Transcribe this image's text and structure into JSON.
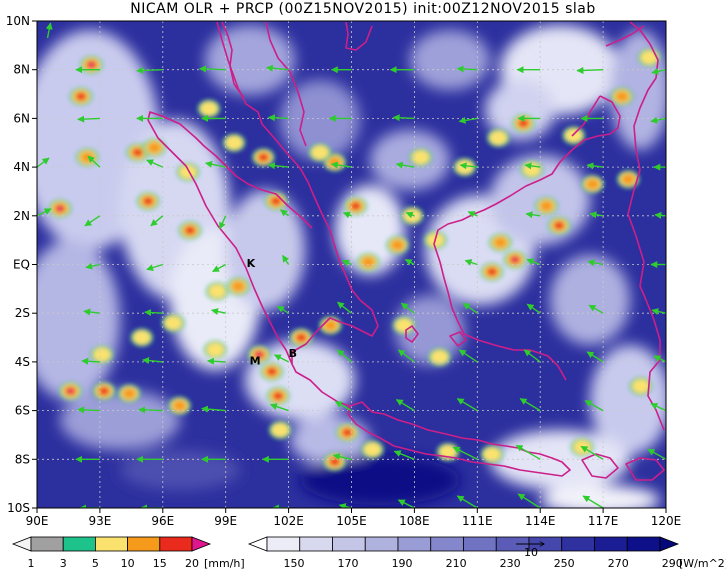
{
  "title": "NICAM OLR + PRCP (00Z15NOV2015) init:00Z12NOV2015 slab",
  "map": {
    "lon_range": [
      90,
      120
    ],
    "lat_range": [
      -10,
      10
    ],
    "lon_ticks": [
      {
        "value": 90,
        "label": "90E"
      },
      {
        "value": 93,
        "label": "93E"
      },
      {
        "value": 96,
        "label": "96E"
      },
      {
        "value": 99,
        "label": "99E"
      },
      {
        "value": 102,
        "label": "102E"
      },
      {
        "value": 105,
        "label": "105E"
      },
      {
        "value": 108,
        "label": "108E"
      },
      {
        "value": 111,
        "label": "111E"
      },
      {
        "value": 114,
        "label": "114E"
      },
      {
        "value": 117,
        "label": "117E"
      },
      {
        "value": 120,
        "label": "120E"
      }
    ],
    "lat_ticks": [
      {
        "value": 10,
        "label": "10N"
      },
      {
        "value": 8,
        "label": "8N"
      },
      {
        "value": 6,
        "label": "6N"
      },
      {
        "value": 4,
        "label": "4N"
      },
      {
        "value": 2,
        "label": "2N"
      },
      {
        "value": 0,
        "label": "EQ"
      },
      {
        "value": -2,
        "label": "2S"
      },
      {
        "value": -4,
        "label": "4S"
      },
      {
        "value": -6,
        "label": "6S"
      },
      {
        "value": -8,
        "label": "8S"
      },
      {
        "value": -10,
        "label": "10S"
      }
    ],
    "grid": "dashed",
    "coast_color": "#cc1f8a",
    "arrow_color": "#2ecc2e",
    "place_labels": [
      {
        "text": "K",
        "lon": 100.2,
        "lat": -0.1
      },
      {
        "text": "M",
        "lon": 100.4,
        "lat": -4.1
      },
      {
        "text": "B",
        "lon": 102.2,
        "lat": -3.8
      }
    ],
    "precip_cells": [
      {
        "lon": 92.6,
        "lat": 8.2,
        "level": 4
      },
      {
        "lon": 92.1,
        "lat": 6.9,
        "level": 3
      },
      {
        "lon": 91.1,
        "lat": 2.3,
        "level": 4
      },
      {
        "lon": 92.4,
        "lat": 4.4,
        "level": 2
      },
      {
        "lon": 94.8,
        "lat": 4.6,
        "level": 3
      },
      {
        "lon": 95.3,
        "lat": 2.6,
        "level": 3
      },
      {
        "lon": 97.3,
        "lat": 1.4,
        "level": 3
      },
      {
        "lon": 95.6,
        "lat": 4.8,
        "level": 2
      },
      {
        "lon": 97.2,
        "lat": 3.8,
        "level": 1
      },
      {
        "lon": 98.6,
        "lat": -1.1,
        "level": 1
      },
      {
        "lon": 100.8,
        "lat": 4.4,
        "level": 3
      },
      {
        "lon": 101.4,
        "lat": 2.6,
        "level": 3
      },
      {
        "lon": 99.6,
        "lat": -0.9,
        "level": 2
      },
      {
        "lon": 100.6,
        "lat": -3.7,
        "level": 4
      },
      {
        "lon": 101.2,
        "lat": -4.4,
        "level": 3
      },
      {
        "lon": 101.5,
        "lat": -5.4,
        "level": 3
      },
      {
        "lon": 102.6,
        "lat": -3.0,
        "level": 3
      },
      {
        "lon": 104.0,
        "lat": -2.5,
        "level": 2
      },
      {
        "lon": 105.2,
        "lat": 2.4,
        "level": 3
      },
      {
        "lon": 104.2,
        "lat": 4.2,
        "level": 2
      },
      {
        "lon": 103.5,
        "lat": 4.6,
        "level": 1
      },
      {
        "lon": 107.2,
        "lat": 0.8,
        "level": 2
      },
      {
        "lon": 105.8,
        "lat": 0.1,
        "level": 2
      },
      {
        "lon": 108.3,
        "lat": 4.4,
        "level": 1
      },
      {
        "lon": 107.9,
        "lat": 2.0,
        "level": 1
      },
      {
        "lon": 109.0,
        "lat": 1.0,
        "level": 1
      },
      {
        "lon": 104.8,
        "lat": -6.9,
        "level": 3
      },
      {
        "lon": 104.2,
        "lat": -8.1,
        "level": 3
      },
      {
        "lon": 112.8,
        "lat": 0.2,
        "level": 4
      },
      {
        "lon": 111.7,
        "lat": -0.3,
        "level": 3
      },
      {
        "lon": 112.1,
        "lat": 0.9,
        "level": 2
      },
      {
        "lon": 114.9,
        "lat": 1.6,
        "level": 3
      },
      {
        "lon": 114.3,
        "lat": 2.4,
        "level": 2
      },
      {
        "lon": 113.2,
        "lat": 5.8,
        "level": 3
      },
      {
        "lon": 112.0,
        "lat": 5.2,
        "level": 1
      },
      {
        "lon": 116.5,
        "lat": 3.3,
        "level": 2
      },
      {
        "lon": 115.6,
        "lat": 5.3,
        "level": 1
      },
      {
        "lon": 118.2,
        "lat": 3.5,
        "level": 2
      },
      {
        "lon": 117.9,
        "lat": 6.9,
        "level": 2
      },
      {
        "lon": 119.2,
        "lat": 8.5,
        "level": 1
      },
      {
        "lon": 110.4,
        "lat": 4.0,
        "level": 1
      },
      {
        "lon": 113.6,
        "lat": 3.9,
        "level": 1
      },
      {
        "lon": 109.2,
        "lat": -3.8,
        "level": 1
      },
      {
        "lon": 107.5,
        "lat": -2.5,
        "level": 1
      },
      {
        "lon": 91.6,
        "lat": -5.2,
        "level": 4
      },
      {
        "lon": 93.2,
        "lat": -5.2,
        "level": 3
      },
      {
        "lon": 94.4,
        "lat": -5.3,
        "level": 2
      },
      {
        "lon": 96.8,
        "lat": -5.8,
        "level": 2
      },
      {
        "lon": 95.0,
        "lat": -3.0,
        "level": 1
      },
      {
        "lon": 93.1,
        "lat": -3.7,
        "level": 1
      },
      {
        "lon": 96.5,
        "lat": -2.4,
        "level": 1
      },
      {
        "lon": 98.5,
        "lat": -3.5,
        "level": 1
      },
      {
        "lon": 98.2,
        "lat": 6.4,
        "level": 1
      },
      {
        "lon": 99.4,
        "lat": 5.0,
        "level": 1
      },
      {
        "lon": 101.6,
        "lat": -6.8,
        "level": 1
      },
      {
        "lon": 106.0,
        "lat": -7.6,
        "level": 1
      },
      {
        "lon": 109.6,
        "lat": -7.7,
        "level": 1
      },
      {
        "lon": 111.7,
        "lat": -7.8,
        "level": 1
      },
      {
        "lon": 116.0,
        "lat": -7.5,
        "level": 1
      },
      {
        "lon": 118.8,
        "lat": -5.0,
        "level": 1
      }
    ],
    "wind_vectors": [
      {
        "lon": 90.5,
        "lat": 9.3,
        "u": 0.3,
        "v": 1.5
      },
      {
        "lon": 93,
        "lat": 8,
        "u": -2.4,
        "v": 0.0
      },
      {
        "lon": 96,
        "lat": 8,
        "u": -2.6,
        "v": -0.1
      },
      {
        "lon": 99,
        "lat": 8,
        "u": -2.6,
        "v": 0.1
      },
      {
        "lon": 102,
        "lat": 8,
        "u": -2.2,
        "v": 0.2
      },
      {
        "lon": 105,
        "lat": 8,
        "u": -2.0,
        "v": 0.0
      },
      {
        "lon": 108,
        "lat": 8,
        "u": -2.4,
        "v": 0.0
      },
      {
        "lon": 111,
        "lat": 8,
        "u": -2.0,
        "v": 0.1
      },
      {
        "lon": 114,
        "lat": 8,
        "u": -2.3,
        "v": 0.0
      },
      {
        "lon": 117,
        "lat": 8,
        "u": -2.6,
        "v": -0.1
      },
      {
        "lon": 120,
        "lat": 8,
        "u": -1.4,
        "v": -0.3
      },
      {
        "lon": 93,
        "lat": 6,
        "u": -2.2,
        "v": -0.1
      },
      {
        "lon": 96,
        "lat": 6,
        "u": -2.6,
        "v": 0.0
      },
      {
        "lon": 99,
        "lat": 6,
        "u": -2.4,
        "v": 0.0
      },
      {
        "lon": 102,
        "lat": 6,
        "u": -2.0,
        "v": 0.1
      },
      {
        "lon": 105,
        "lat": 6,
        "u": -2.2,
        "v": 0.0
      },
      {
        "lon": 108,
        "lat": 6,
        "u": -2.1,
        "v": 0.1
      },
      {
        "lon": 111,
        "lat": 6,
        "u": -1.8,
        "v": -0.3
      },
      {
        "lon": 114,
        "lat": 6,
        "u": -2.2,
        "v": 0.0
      },
      {
        "lon": 117,
        "lat": 6,
        "u": -2.2,
        "v": 0.0
      },
      {
        "lon": 120,
        "lat": 6,
        "u": -1.5,
        "v": -0.3
      },
      {
        "lon": 90,
        "lat": 4,
        "u": 1.2,
        "v": 0.9
      },
      {
        "lon": 93,
        "lat": 4,
        "u": -1.2,
        "v": 1.1
      },
      {
        "lon": 96,
        "lat": 4,
        "u": -1.6,
        "v": 0.7
      },
      {
        "lon": 99,
        "lat": 4,
        "u": -2.0,
        "v": 0.4
      },
      {
        "lon": 102,
        "lat": 4,
        "u": -2.0,
        "v": 0.2
      },
      {
        "lon": 105,
        "lat": 4,
        "u": -2.0,
        "v": 0.3
      },
      {
        "lon": 108,
        "lat": 4,
        "u": -1.8,
        "v": 0.3
      },
      {
        "lon": 111,
        "lat": 4,
        "u": -1.7,
        "v": 0.2
      },
      {
        "lon": 114,
        "lat": 4,
        "u": -1.5,
        "v": 0.2
      },
      {
        "lon": 117,
        "lat": 4,
        "u": -1.6,
        "v": 0.2
      },
      {
        "lon": 120,
        "lat": 4,
        "u": -1.2,
        "v": 0.0
      },
      {
        "lon": 90,
        "lat": 2,
        "u": 1.4,
        "v": 0.7
      },
      {
        "lon": 93,
        "lat": 2,
        "u": -1.5,
        "v": -1.0
      },
      {
        "lon": 96,
        "lat": 2,
        "u": -1.2,
        "v": -1.0
      },
      {
        "lon": 99,
        "lat": 2,
        "u": -0.6,
        "v": -1.3
      },
      {
        "lon": 102,
        "lat": 2,
        "u": -0.8,
        "v": 0.6
      },
      {
        "lon": 105,
        "lat": 2,
        "u": -0.8,
        "v": 0.3
      },
      {
        "lon": 108,
        "lat": 2,
        "u": -0.8,
        "v": 0.3
      },
      {
        "lon": 111,
        "lat": 2,
        "u": -0.9,
        "v": 0.4
      },
      {
        "lon": 114,
        "lat": 2,
        "u": -1.4,
        "v": 0.2
      },
      {
        "lon": 117,
        "lat": 2,
        "u": -1.3,
        "v": 0.2
      },
      {
        "lon": 120,
        "lat": 2,
        "u": -1.1,
        "v": 0.1
      },
      {
        "lon": 93,
        "lat": 0,
        "u": -1.4,
        "v": -0.3
      },
      {
        "lon": 96,
        "lat": 0,
        "u": -1.6,
        "v": -0.5
      },
      {
        "lon": 99,
        "lat": 0,
        "u": -1.3,
        "v": -0.7
      },
      {
        "lon": 102,
        "lat": 0,
        "u": -0.6,
        "v": 0.9
      },
      {
        "lon": 105,
        "lat": 0,
        "u": -0.9,
        "v": 0.4
      },
      {
        "lon": 108,
        "lat": 0,
        "u": -0.9,
        "v": 0.5
      },
      {
        "lon": 111,
        "lat": 0,
        "u": -1.2,
        "v": 0.4
      },
      {
        "lon": 114,
        "lat": 0,
        "u": -1.3,
        "v": 0.5
      },
      {
        "lon": 117,
        "lat": 0,
        "u": -1.5,
        "v": 0.3
      },
      {
        "lon": 120,
        "lat": 0,
        "u": -1.5,
        "v": 0.0
      },
      {
        "lon": 93,
        "lat": -2,
        "u": -1.6,
        "v": 0.2
      },
      {
        "lon": 96,
        "lat": -2,
        "u": -1.8,
        "v": 0.1
      },
      {
        "lon": 99,
        "lat": -2,
        "u": -1.4,
        "v": 0.3
      },
      {
        "lon": 102,
        "lat": -2,
        "u": -1.1,
        "v": 0.7
      },
      {
        "lon": 105,
        "lat": -2,
        "u": -1.4,
        "v": 1.1
      },
      {
        "lon": 108,
        "lat": -2,
        "u": -1.3,
        "v": 1.0
      },
      {
        "lon": 111,
        "lat": -2,
        "u": -1.4,
        "v": 1.0
      },
      {
        "lon": 114,
        "lat": -2,
        "u": -1.3,
        "v": 0.9
      },
      {
        "lon": 117,
        "lat": -2,
        "u": -1.4,
        "v": 0.8
      },
      {
        "lon": 120,
        "lat": -2,
        "u": -1.4,
        "v": 0.3
      },
      {
        "lon": 93,
        "lat": -4,
        "u": -1.8,
        "v": 0.1
      },
      {
        "lon": 96,
        "lat": -4,
        "u": -2.0,
        "v": 0.2
      },
      {
        "lon": 99,
        "lat": -4,
        "u": -1.8,
        "v": 0.1
      },
      {
        "lon": 102,
        "lat": -4,
        "u": -1.4,
        "v": 0.7
      },
      {
        "lon": 105,
        "lat": -4,
        "u": -1.4,
        "v": 1.2
      },
      {
        "lon": 108,
        "lat": -4,
        "u": -1.6,
        "v": 1.2
      },
      {
        "lon": 111,
        "lat": -4,
        "u": -1.8,
        "v": 1.2
      },
      {
        "lon": 114,
        "lat": -4,
        "u": -1.6,
        "v": 1.2
      },
      {
        "lon": 117,
        "lat": -4,
        "u": -1.6,
        "v": 1.0
      },
      {
        "lon": 120,
        "lat": -4,
        "u": -1.2,
        "v": 0.6
      },
      {
        "lon": 93,
        "lat": -6,
        "u": -2.2,
        "v": 0.1
      },
      {
        "lon": 96,
        "lat": -6,
        "u": -2.4,
        "v": 0.1
      },
      {
        "lon": 99,
        "lat": -6,
        "u": -2.4,
        "v": 0.2
      },
      {
        "lon": 102,
        "lat": -6,
        "u": -1.8,
        "v": 0.6
      },
      {
        "lon": 105,
        "lat": -6,
        "u": -1.6,
        "v": 0.9
      },
      {
        "lon": 108,
        "lat": -6,
        "u": -1.8,
        "v": 1.1
      },
      {
        "lon": 111,
        "lat": -6,
        "u": -2.0,
        "v": 1.2
      },
      {
        "lon": 114,
        "lat": -6,
        "u": -2.0,
        "v": 1.2
      },
      {
        "lon": 117,
        "lat": -6,
        "u": -1.8,
        "v": 1.0
      },
      {
        "lon": 120,
        "lat": -6,
        "u": -1.5,
        "v": 0.7
      },
      {
        "lon": 93,
        "lat": -8,
        "u": -2.4,
        "v": 0.0
      },
      {
        "lon": 96,
        "lat": -8,
        "u": -2.6,
        "v": 0.0
      },
      {
        "lon": 99,
        "lat": -8,
        "u": -2.4,
        "v": 0.0
      },
      {
        "lon": 102,
        "lat": -8,
        "u": -2.6,
        "v": 0.0
      },
      {
        "lon": 105,
        "lat": -8,
        "u": -1.8,
        "v": 0.4
      },
      {
        "lon": 108,
        "lat": -8,
        "u": -2.0,
        "v": 0.8
      },
      {
        "lon": 111,
        "lat": -8,
        "u": -2.4,
        "v": 1.2
      },
      {
        "lon": 114,
        "lat": -8,
        "u": -2.4,
        "v": 1.4
      },
      {
        "lon": 117,
        "lat": -8,
        "u": -2.2,
        "v": 1.3
      },
      {
        "lon": 120,
        "lat": -8,
        "u": -1.8,
        "v": 1.0
      },
      {
        "lon": 93,
        "lat": -10,
        "u": -2.0,
        "v": 0.0
      },
      {
        "lon": 96,
        "lat": -10,
        "u": -2.2,
        "v": 0.0
      },
      {
        "lon": 102,
        "lat": -10,
        "u": -1.6,
        "v": 0.0
      },
      {
        "lon": 105,
        "lat": -10,
        "u": -1.2,
        "v": 0.3
      },
      {
        "lon": 108,
        "lat": -10,
        "u": -1.6,
        "v": 0.8
      },
      {
        "lon": 111,
        "lat": -10,
        "u": -2.0,
        "v": 1.2
      },
      {
        "lon": 114,
        "lat": -10,
        "u": -2.2,
        "v": 1.4
      },
      {
        "lon": 117,
        "lat": -10,
        "u": -2.0,
        "v": 1.2
      }
    ]
  },
  "legend_prcp": {
    "unit": "[mm/h]",
    "labels": [
      "1",
      "3",
      "5",
      "10",
      "15",
      "20"
    ],
    "colors": [
      "#f4f4f4",
      "#a0a0a0",
      "#1ec38b",
      "#fbe26e",
      "#f69a1c",
      "#ea2a1c",
      "#e0168f"
    ]
  },
  "legend_olr": {
    "unit": "[W/m^2]",
    "labels": [
      "150",
      "170",
      "190",
      "210",
      "230",
      "250",
      "270",
      "290"
    ],
    "colors": [
      "#ffffff",
      "#ececf6",
      "#d8d9ef",
      "#c4c5e7",
      "#afb1df",
      "#9a9cd6",
      "#8587cc",
      "#7072c2",
      "#5a5cb7",
      "#4547ac",
      "#2f31a0",
      "#1a1d94",
      "#0d1088",
      "#06097a"
    ],
    "vector_ref": "10"
  }
}
